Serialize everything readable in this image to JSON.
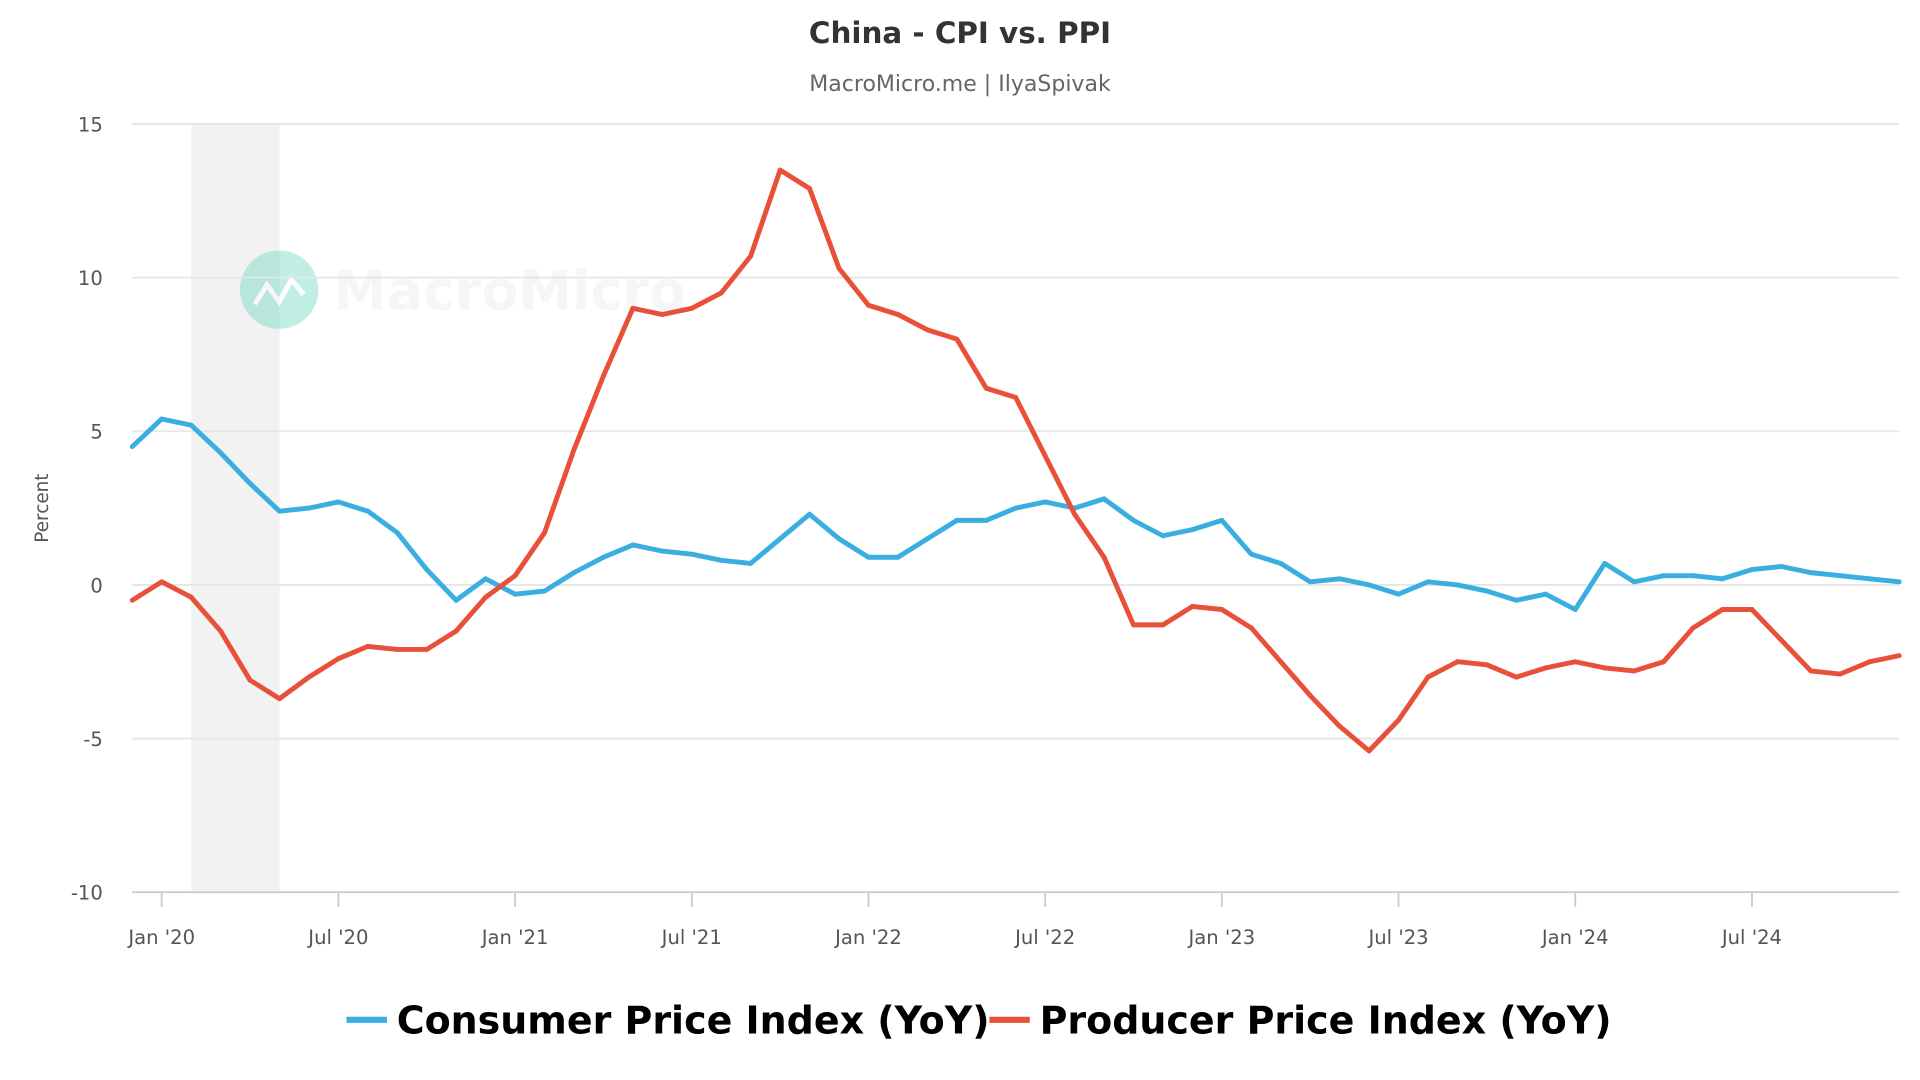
{
  "chart_data": {
    "type": "line",
    "title": "China - CPI vs. PPI",
    "subtitle": "MacroMicro.me | IlyaSpivak",
    "ylabel": "Percent",
    "xlabel": "",
    "ylim": [
      -10,
      15
    ],
    "yticks": [
      15,
      10,
      5,
      0,
      -5,
      -10
    ],
    "grid": true,
    "legend_placement": "bottom",
    "xticks": [
      {
        "label": "Jan '20",
        "month": "2020-01"
      },
      {
        "label": "Jul '20",
        "month": "2020-07"
      },
      {
        "label": "Jan '21",
        "month": "2021-01"
      },
      {
        "label": "Jul '21",
        "month": "2021-07"
      },
      {
        "label": "Jan '22",
        "month": "2022-01"
      },
      {
        "label": "Jul '22",
        "month": "2022-07"
      },
      {
        "label": "Jan '23",
        "month": "2023-01"
      },
      {
        "label": "Jul '23",
        "month": "2023-07"
      },
      {
        "label": "Jan '24",
        "month": "2024-01"
      },
      {
        "label": "Jul '24",
        "month": "2024-07"
      }
    ],
    "x_start": "2019-12",
    "x_end": "2024-12",
    "shaded_period": {
      "start": "2020-02",
      "end": "2020-05",
      "color": "#f2f2f2"
    },
    "series": [
      {
        "name": "Consumer Price Index (YoY)",
        "color": "#3aaee0",
        "values": [
          4.5,
          5.4,
          5.2,
          4.3,
          3.3,
          2.4,
          2.5,
          2.7,
          2.4,
          1.7,
          0.5,
          -0.5,
          0.2,
          -0.3,
          -0.2,
          0.4,
          0.9,
          1.3,
          1.1,
          1.0,
          0.8,
          0.7,
          1.5,
          2.3,
          1.5,
          0.9,
          0.9,
          1.5,
          2.1,
          2.1,
          2.5,
          2.7,
          2.5,
          2.8,
          2.1,
          1.6,
          1.8,
          2.1,
          1.0,
          0.7,
          0.1,
          0.2,
          0.0,
          -0.3,
          0.1,
          0.0,
          -0.2,
          -0.5,
          -0.3,
          -0.8,
          0.7,
          0.1,
          0.3,
          0.3,
          0.2,
          0.5,
          0.6,
          0.4,
          0.3,
          0.2,
          0.1
        ]
      },
      {
        "name": "Producer Price Index (YoY)",
        "color": "#e8503a",
        "values": [
          -0.5,
          0.1,
          -0.4,
          -1.5,
          -3.1,
          -3.7,
          -3.0,
          -2.4,
          -2.0,
          -2.1,
          -2.1,
          -1.5,
          -0.4,
          0.3,
          1.7,
          4.4,
          6.8,
          9.0,
          8.8,
          9.0,
          9.5,
          10.7,
          13.5,
          12.9,
          10.3,
          9.1,
          8.8,
          8.3,
          8.0,
          6.4,
          6.1,
          4.2,
          2.3,
          0.9,
          -1.3,
          -1.3,
          -0.7,
          -0.8,
          -1.4,
          -2.5,
          -3.6,
          -4.6,
          -5.4,
          -4.4,
          -3.0,
          -2.5,
          -2.6,
          -3.0,
          -2.7,
          -2.5,
          -2.7,
          -2.8,
          -2.5,
          -1.4,
          -0.8,
          -0.8,
          -1.8,
          -2.8,
          -2.9,
          -2.5,
          -2.3
        ]
      }
    ]
  },
  "watermark": {
    "text": "MacroMicro",
    "color": "#4fd1b5"
  }
}
